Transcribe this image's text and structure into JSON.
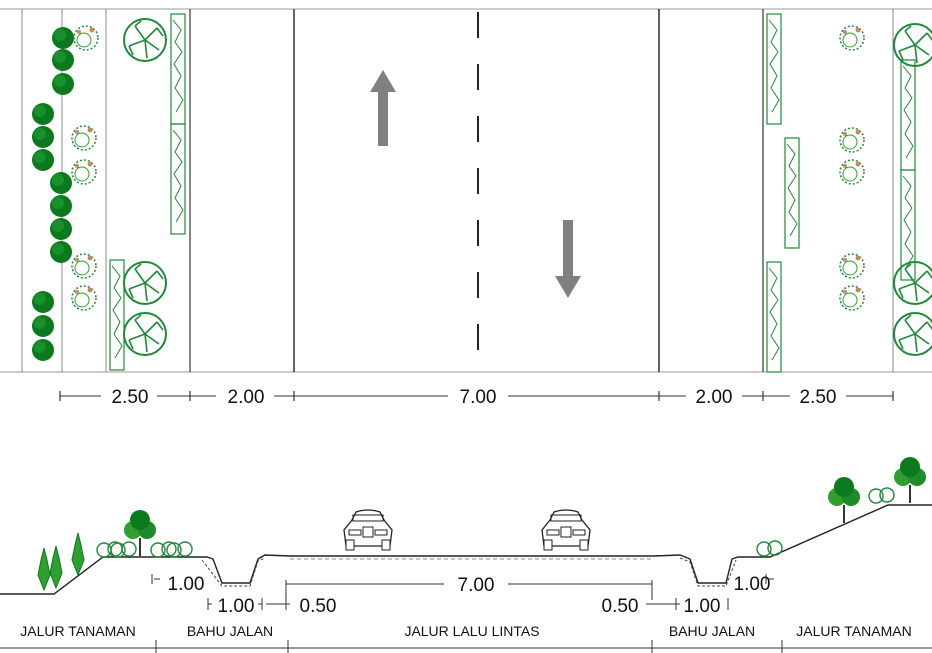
{
  "plan": {
    "widths": [
      "2.50",
      "2.00",
      "7.00",
      "2.00",
      "2.50"
    ]
  },
  "section": {
    "dims": {
      "bench_left": "1.00",
      "ditch_left": "1.00",
      "shoulder_left": "0.50",
      "lane": "7.00",
      "shoulder_right": "0.50",
      "ditch_right": "1.00",
      "bench_right": "1.00"
    },
    "zones": [
      "JALUR TANAMAN",
      "BAHU JALAN",
      "JALUR LALU LINTAS",
      "BAHU JALAN",
      "JALUR TANAMAN"
    ]
  },
  "colors": {
    "tree_dark": "#0b7a1e",
    "tree_mid": "#2fa02f",
    "canopy_outline": "#1f8a3a",
    "shrub_accent": "#c98a5a",
    "arrow": "#808080",
    "line": "#333333"
  },
  "icons": [
    "up-arrow-icon",
    "down-arrow-icon",
    "car-icon",
    "tree-icon",
    "shrub-icon"
  ]
}
